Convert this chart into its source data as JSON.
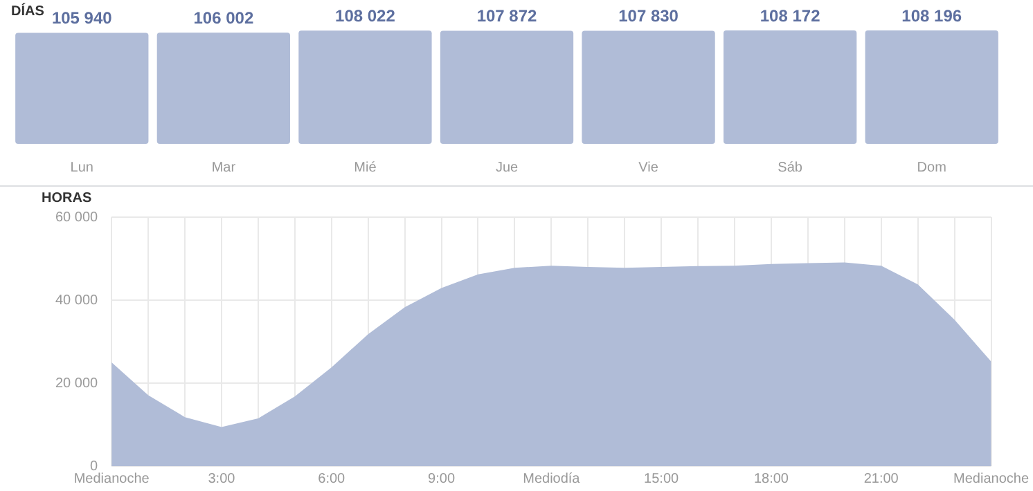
{
  "chart_data": [
    {
      "type": "bar",
      "title": "DÍAS",
      "categories": [
        "Lun",
        "Mar",
        "Mié",
        "Jue",
        "Vie",
        "Sáb",
        "Dom"
      ],
      "values": [
        105940,
        106002,
        108022,
        107872,
        107830,
        108172,
        108196
      ],
      "color": "#b0bcd7",
      "data_labels": true,
      "value_labels": [
        "105 940",
        "106 002",
        "108 022",
        "107 872",
        "107 830",
        "108 172",
        "108 196"
      ],
      "grid": false
    },
    {
      "type": "area",
      "title": "HORAS",
      "x": [
        0,
        1,
        2,
        3,
        4,
        5,
        6,
        7,
        8,
        9,
        10,
        11,
        12,
        13,
        14,
        15,
        16,
        17,
        18,
        19,
        20,
        21,
        22,
        23,
        24
      ],
      "values": [
        25000,
        17100,
        11800,
        9400,
        11500,
        16800,
        23800,
        31800,
        38300,
        42900,
        46200,
        47800,
        48300,
        48000,
        47800,
        48000,
        48200,
        48300,
        48700,
        48900,
        49100,
        48300,
        43800,
        35300,
        25200
      ],
      "color": "#b0bcd7",
      "xlim": [
        0,
        24
      ],
      "xticks": [
        {
          "value": 0,
          "label": "Medianoche"
        },
        {
          "value": 1,
          "label": null
        },
        {
          "value": 2,
          "label": null
        },
        {
          "value": 3,
          "label": "3:00"
        },
        {
          "value": 4,
          "label": null
        },
        {
          "value": 5,
          "label": null
        },
        {
          "value": 6,
          "label": "6:00"
        },
        {
          "value": 7,
          "label": null
        },
        {
          "value": 8,
          "label": null
        },
        {
          "value": 9,
          "label": "9:00"
        },
        {
          "value": 10,
          "label": null
        },
        {
          "value": 11,
          "label": null
        },
        {
          "value": 12,
          "label": "Mediodía"
        },
        {
          "value": 13,
          "label": null
        },
        {
          "value": 14,
          "label": null
        },
        {
          "value": 15,
          "label": "15:00"
        },
        {
          "value": 16,
          "label": null
        },
        {
          "value": 17,
          "label": null
        },
        {
          "value": 18,
          "label": "18:00"
        },
        {
          "value": 19,
          "label": null
        },
        {
          "value": 20,
          "label": null
        },
        {
          "value": 21,
          "label": "21:00"
        },
        {
          "value": 22,
          "label": null
        },
        {
          "value": 23,
          "label": null
        },
        {
          "value": 24,
          "label": "Medianoche"
        }
      ],
      "ylim": [
        0,
        60000
      ],
      "yticks": [
        {
          "value": 0,
          "label": "0"
        },
        {
          "value": 20000,
          "label": "20 000"
        },
        {
          "value": 40000,
          "label": "40 000"
        },
        {
          "value": 60000,
          "label": "60 000"
        }
      ],
      "grid": true
    }
  ]
}
